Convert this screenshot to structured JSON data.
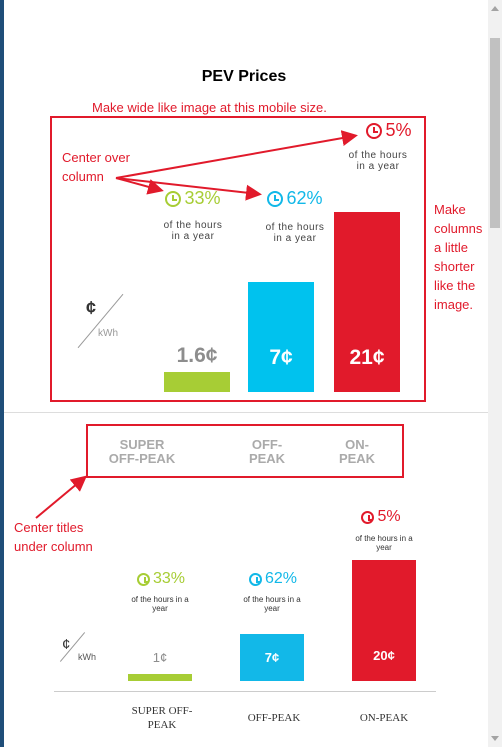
{
  "title": "PEV Prices",
  "annotations": {
    "wide": "Make wide like image at this mobile size.",
    "center_over": "Center over column",
    "columns": "Make columns a little shorter like the image.",
    "center_titles": "Center titles under column"
  },
  "unit": {
    "cent": "¢",
    "kwh": "kWh"
  },
  "colors": {
    "green": "#a7cd35",
    "blue": "#12b8e8",
    "red": "#e11a2b",
    "gray_text": "#8d8d8d"
  },
  "mockup": {
    "columns": [
      {
        "percent": "33%",
        "caption": "of the hours in a year",
        "price": "1.6¢",
        "label": "SUPER OFF-PEAK"
      },
      {
        "percent": "62%",
        "caption": "of the hours in a year",
        "price": "7¢",
        "label": "OFF-PEAK"
      },
      {
        "percent": "5%",
        "caption": "of the hours in a year",
        "price": "21¢",
        "label": "ON-PEAK"
      }
    ]
  },
  "reference": {
    "columns": [
      {
        "percent": "33%",
        "caption": "of the hours in a year",
        "price": "1¢",
        "label": "SUPER OFF-PEAK"
      },
      {
        "percent": "62%",
        "caption": "of the hours in a year",
        "price": "7¢",
        "label": "OFF-PEAK"
      },
      {
        "percent": "5%",
        "caption": "of the hours in a year",
        "price": "20¢",
        "label": "ON-PEAK"
      }
    ]
  }
}
